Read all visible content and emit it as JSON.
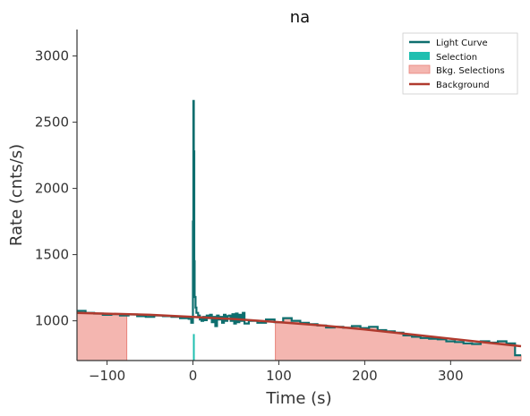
{
  "chart_data": {
    "type": "line",
    "title": "na",
    "xlabel": "Time (s)",
    "ylabel": "Rate (cnts/s)",
    "xlim": [
      -135,
      382
    ],
    "ylim": [
      700,
      3200
    ],
    "xticks": [
      -100,
      0,
      100,
      200,
      300
    ],
    "xtick_labels": [
      "−100",
      "0",
      "100",
      "200",
      "300"
    ],
    "yticks": [
      1000,
      1500,
      2000,
      2500,
      3000
    ],
    "ytick_labels": [
      "1000",
      "1500",
      "2000",
      "2500",
      "3000"
    ],
    "grid": false,
    "legend_position": "top-right",
    "colors": {
      "light_curve": "#0d6e6e",
      "selection": "#1fbfb0",
      "bkg_selection_fill": "#f4b6b0",
      "bkg_selection_edge": "#e8837a",
      "background": "#b03a2e"
    },
    "legend": [
      "Light Curve",
      "Selection",
      "Bkg. Selections",
      "Background"
    ],
    "series": [
      {
        "name": "Light Curve",
        "kind": "step",
        "x": [
          -135,
          -125,
          -115,
          -105,
          -95,
          -85,
          -75,
          -65,
          -55,
          -45,
          -35,
          -25,
          -15,
          -5,
          -2,
          0,
          0.5,
          1,
          1.5,
          2,
          3,
          4,
          6,
          8,
          10,
          12,
          14,
          16,
          18,
          20,
          22,
          24,
          26,
          28,
          30,
          32,
          34,
          36,
          38,
          40,
          42,
          44,
          46,
          48,
          50,
          52,
          54,
          56,
          58,
          60,
          65,
          75,
          85,
          95,
          105,
          115,
          125,
          135,
          145,
          155,
          165,
          175,
          185,
          195,
          205,
          215,
          225,
          235,
          245,
          255,
          265,
          275,
          285,
          295,
          305,
          315,
          325,
          335,
          345,
          355,
          365,
          375,
          382
        ],
        "y": [
          1075,
          1060,
          1055,
          1045,
          1050,
          1040,
          1048,
          1035,
          1030,
          1040,
          1035,
          1030,
          1020,
          1015,
          985,
          1750,
          2660,
          2280,
          1450,
          1180,
          1100,
          1060,
          1040,
          1010,
          1000,
          1030,
          1005,
          1040,
          1020,
          1045,
          990,
          1030,
          960,
          1040,
          1010,
          1030,
          985,
          1045,
          1000,
          1035,
          1040,
          1000,
          1050,
          980,
          1055,
          990,
          1045,
          1000,
          1060,
          980,
          1000,
          985,
          1010,
          990,
          1020,
          1000,
          985,
          975,
          965,
          950,
          955,
          948,
          960,
          945,
          955,
          930,
          920,
          910,
          890,
          880,
          870,
          865,
          860,
          845,
          840,
          830,
          825,
          845,
          835,
          845,
          830,
          740,
          740
        ]
      },
      {
        "name": "Background",
        "kind": "line",
        "x": [
          -135,
          -50,
          0,
          50,
          100,
          150,
          200,
          250,
          300,
          350,
          382
        ],
        "y": [
          1060,
          1045,
          1030,
          1012,
          990,
          965,
          935,
          900,
          865,
          830,
          808
        ]
      }
    ],
    "selection_interval": [
      0,
      2
    ],
    "background_intervals": [
      [
        -135,
        -77
      ],
      [
        96,
        382
      ]
    ]
  }
}
